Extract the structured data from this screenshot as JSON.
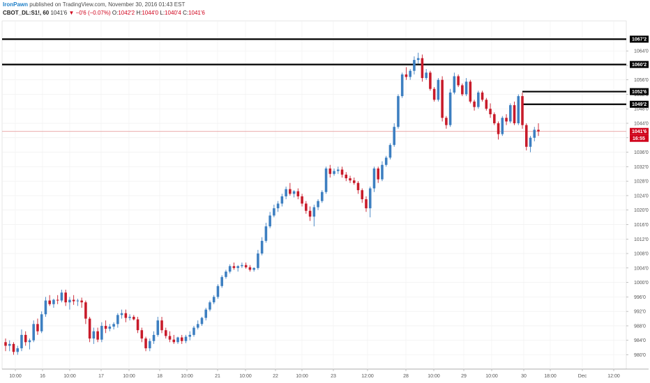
{
  "header": {
    "author": "IronPawn",
    "published_text": "published on TradingView.com, November 30, 2016 01:43 EST",
    "symbol": "CBOT_DL:S1!, 60",
    "last": "1041'6",
    "arrow": "▼",
    "change": "−0'6 (−0.07%)",
    "open_label": "O:",
    "open": "1042'2",
    "high_label": "H:",
    "high": "1044'0",
    "low_label": "L:",
    "low": "1040'4",
    "close_label": "C:",
    "close": "1041'6"
  },
  "colors": {
    "up": "#3d7fc1",
    "down": "#c81b2a",
    "level_line": "#000000",
    "price_line": "#e8a0a0",
    "label_bg": "#000000",
    "price_label_bg": "#d0021b"
  },
  "chart_data": {
    "type": "candlestick",
    "ylim": [
      978,
      1068
    ],
    "y_ticks": [
      {
        "value": 980,
        "label": "980'0"
      },
      {
        "value": 984,
        "label": "984'0"
      },
      {
        "value": 988,
        "label": "988'0"
      },
      {
        "value": 992,
        "label": "992'0"
      },
      {
        "value": 996,
        "label": "996'0"
      },
      {
        "value": 1000,
        "label": "1000'0"
      },
      {
        "value": 1004,
        "label": "1004'0"
      },
      {
        "value": 1008,
        "label": "1008'0"
      },
      {
        "value": 1012,
        "label": "1012'0"
      },
      {
        "value": 1016,
        "label": "1016'0"
      },
      {
        "value": 1020,
        "label": "1020'0"
      },
      {
        "value": 1024,
        "label": "1024'0"
      },
      {
        "value": 1028,
        "label": "1028'0"
      },
      {
        "value": 1032,
        "label": "1032'0"
      },
      {
        "value": 1036,
        "label": "1036'0"
      },
      {
        "value": 1040,
        "label": "1040'0"
      },
      {
        "value": 1044,
        "label": "1044'0"
      },
      {
        "value": 1048,
        "label": "1048'0"
      },
      {
        "value": 1052,
        "label": "1052'0"
      },
      {
        "value": 1056,
        "label": "1056'0"
      },
      {
        "value": 1060,
        "label": "1060'0"
      },
      {
        "value": 1064,
        "label": "1064'0"
      }
    ],
    "x_ticks": [
      "10:00",
      "16",
      "10:00",
      "17",
      "10:00",
      "18",
      "10:00",
      "21",
      "10:00",
      "22",
      "10:00",
      "23",
      "12:00",
      "28",
      "10:00",
      "29",
      "10:00",
      "30",
      "18:00",
      "Dec",
      "12:00"
    ],
    "levels": [
      {
        "value": 1067.25,
        "label": "1067'2"
      },
      {
        "value": 1060.25,
        "label": "1060'2"
      },
      {
        "value": 1052.75,
        "label": "1052'6"
      },
      {
        "value": 1049.25,
        "label": "1049'2"
      }
    ],
    "current_price": {
      "value": 1041.75,
      "label": "1041'6",
      "countdown": "16:55"
    },
    "candles": [
      [
        983.5,
        984.5,
        981,
        982.5
      ],
      [
        982.5,
        984,
        981,
        983
      ],
      [
        983,
        983.5,
        980,
        980.8
      ],
      [
        980.8,
        982.5,
        980,
        981.8
      ],
      [
        981.8,
        987,
        981,
        985.5
      ],
      [
        985.5,
        986.5,
        982.5,
        983.5
      ],
      [
        983.5,
        984.5,
        981.5,
        984
      ],
      [
        984,
        989.5,
        983.5,
        988.5
      ],
      [
        988.5,
        990,
        985.5,
        986.5
      ],
      [
        986.5,
        992,
        986,
        991.2
      ],
      [
        991.2,
        996,
        990.5,
        995
      ],
      [
        995,
        996.5,
        993.5,
        994
      ],
      [
        994,
        995.5,
        993,
        995.2
      ],
      [
        995.2,
        996.5,
        994,
        995
      ],
      [
        995,
        998,
        994.5,
        997.2
      ],
      [
        997.2,
        998,
        993.5,
        994.5
      ],
      [
        994.5,
        996,
        992.5,
        995.2
      ],
      [
        995.2,
        996.5,
        993.8,
        994.8
      ],
      [
        994.8,
        995.5,
        993.5,
        995
      ],
      [
        995,
        995.8,
        993,
        994.5
      ],
      [
        994.5,
        995,
        988.5,
        990
      ],
      [
        990,
        990.5,
        983.5,
        984.5
      ],
      [
        984.5,
        987.5,
        983,
        986.5
      ],
      [
        986.5,
        987.5,
        983.5,
        984.2
      ],
      [
        984.2,
        989,
        983.5,
        988
      ],
      [
        988,
        989.5,
        986,
        987.2
      ],
      [
        987.2,
        988.5,
        986.5,
        987.8
      ],
      [
        987.8,
        989,
        987,
        988.5
      ],
      [
        988.5,
        991.5,
        987.5,
        991
      ],
      [
        991,
        992.5,
        990,
        991.5
      ],
      [
        991.5,
        992.5,
        989,
        990.2
      ],
      [
        990.2,
        991.2,
        989.5,
        990.5
      ],
      [
        990.5,
        991,
        989.5,
        989.8
      ],
      [
        989.8,
        990.5,
        986,
        986.8
      ],
      [
        986.8,
        987.5,
        983.5,
        984.5
      ],
      [
        984.5,
        985,
        981,
        981.8
      ],
      [
        981.8,
        984.5,
        981,
        983.8
      ],
      [
        983.8,
        986.5,
        983,
        985.5
      ],
      [
        985.5,
        990.5,
        985,
        989.5
      ],
      [
        989.5,
        990.5,
        986,
        986.8
      ],
      [
        986.8,
        987.5,
        984.5,
        985.2
      ],
      [
        985.2,
        986.5,
        983.5,
        984.2
      ],
      [
        984.2,
        985.5,
        983,
        983.5
      ],
      [
        983.5,
        985,
        983,
        984.8
      ],
      [
        984.8,
        985.5,
        983,
        983.8
      ],
      [
        983.8,
        985.5,
        983.2,
        985
      ],
      [
        985,
        986.5,
        984,
        985.5
      ],
      [
        985.5,
        988,
        985,
        987.5
      ],
      [
        987.5,
        989.5,
        987,
        988.5
      ],
      [
        988.5,
        990.5,
        988,
        990.2
      ],
      [
        990.2,
        993,
        989.5,
        992.5
      ],
      [
        992.5,
        995,
        992,
        994.5
      ],
      [
        994.5,
        996.5,
        994,
        996
      ],
      [
        996,
        999.5,
        995.5,
        999
      ],
      [
        999,
        1002,
        998.5,
        1001.5
      ],
      [
        1001.5,
        1003.5,
        1001,
        1003
      ],
      [
        1003,
        1005,
        1002.5,
        1004.5
      ],
      [
        1004.5,
        1005.5,
        1003.5,
        1004
      ],
      [
        1004,
        1004.8,
        1003,
        1004.5
      ],
      [
        1004.5,
        1005.5,
        1004,
        1004.8
      ],
      [
        1004.8,
        1005.5,
        1003.8,
        1004.2
      ],
      [
        1004.2,
        1004.8,
        1003,
        1003.5
      ],
      [
        1003.5,
        1004.2,
        1003,
        1004
      ],
      [
        1004,
        1009,
        1003.5,
        1008
      ],
      [
        1008,
        1012.5,
        1007.5,
        1011.5
      ],
      [
        1011.5,
        1016.5,
        1011,
        1015.5
      ],
      [
        1015.5,
        1019.5,
        1015,
        1018.5
      ],
      [
        1018.5,
        1021.5,
        1018,
        1020.5
      ],
      [
        1020.5,
        1022.5,
        1019.5,
        1021.8
      ],
      [
        1021.8,
        1024.5,
        1021,
        1023.8
      ],
      [
        1023.8,
        1026.5,
        1023,
        1025.8
      ],
      [
        1025.8,
        1027.5,
        1024,
        1024.5
      ],
      [
        1024.5,
        1025.5,
        1023.5,
        1025.2
      ],
      [
        1025.2,
        1026,
        1023,
        1023.8
      ],
      [
        1023.8,
        1024.5,
        1021,
        1021.8
      ],
      [
        1021.8,
        1022.5,
        1019,
        1019.8
      ],
      [
        1019.8,
        1021,
        1017,
        1018.2
      ],
      [
        1018.2,
        1021.5,
        1015.5,
        1020.8
      ],
      [
        1020.8,
        1023,
        1020,
        1022.5
      ],
      [
        1022.5,
        1025.5,
        1022,
        1025
      ],
      [
        1025,
        1032,
        1024.5,
        1031.5
      ],
      [
        1031.5,
        1032.5,
        1029,
        1030
      ],
      [
        1030,
        1031.5,
        1029.5,
        1030.8
      ],
      [
        1030.8,
        1032,
        1030,
        1031.2
      ],
      [
        1031.2,
        1032,
        1029,
        1029.8
      ],
      [
        1029.8,
        1030.5,
        1028,
        1028.8
      ],
      [
        1028.8,
        1029.5,
        1027.5,
        1028.2
      ],
      [
        1028.2,
        1029,
        1027,
        1027.5
      ],
      [
        1027.5,
        1028,
        1024.5,
        1025.5
      ],
      [
        1025.5,
        1026,
        1022,
        1023
      ],
      [
        1023,
        1023.8,
        1019.5,
        1020.5
      ],
      [
        1020.5,
        1026.5,
        1018,
        1026
      ],
      [
        1026,
        1032,
        1025,
        1031.5
      ],
      [
        1031.5,
        1032,
        1027.5,
        1028.5
      ],
      [
        1028.5,
        1033.5,
        1028,
        1032.5
      ],
      [
        1032.5,
        1035,
        1032,
        1034.5
      ],
      [
        1034.5,
        1038.5,
        1034,
        1038
      ],
      [
        1038,
        1044,
        1037.5,
        1043
      ],
      [
        1043,
        1052,
        1042.5,
        1051.5
      ],
      [
        1051.5,
        1058,
        1051,
        1057.5
      ],
      [
        1057.5,
        1059.5,
        1056,
        1056.8
      ],
      [
        1056.8,
        1059,
        1056,
        1058.5
      ],
      [
        1058.5,
        1062.5,
        1057.5,
        1061.5
      ],
      [
        1061.5,
        1063.5,
        1060.5,
        1062
      ],
      [
        1062,
        1063,
        1055.5,
        1056.5
      ],
      [
        1056.5,
        1059,
        1056,
        1058
      ],
      [
        1058,
        1058.5,
        1053,
        1053.5
      ],
      [
        1053.5,
        1054,
        1050,
        1050.5
      ],
      [
        1050.5,
        1056.5,
        1050,
        1056
      ],
      [
        1056,
        1057,
        1044.5,
        1045.5
      ],
      [
        1045.5,
        1046,
        1042.5,
        1043.5
      ],
      [
        1043.5,
        1053.5,
        1043,
        1052.5
      ],
      [
        1052.5,
        1058,
        1052,
        1057
      ],
      [
        1057,
        1057.5,
        1054,
        1054.5
      ],
      [
        1054.5,
        1055,
        1051.5,
        1052
      ],
      [
        1052,
        1056.5,
        1051.5,
        1055.5
      ],
      [
        1055.5,
        1056,
        1049.5,
        1050
      ],
      [
        1050,
        1050.5,
        1047.5,
        1048.5
      ],
      [
        1048.5,
        1053,
        1048,
        1052.5
      ],
      [
        1052.5,
        1053,
        1050,
        1050.5
      ],
      [
        1050.5,
        1051,
        1047.5,
        1048
      ],
      [
        1048,
        1049.5,
        1045.5,
        1046.5
      ],
      [
        1046.5,
        1047,
        1043.5,
        1044
      ],
      [
        1044,
        1044.5,
        1039.5,
        1041
      ],
      [
        1041,
        1046,
        1040.5,
        1045.5
      ],
      [
        1045.5,
        1046.5,
        1043.5,
        1044.5
      ],
      [
        1044.5,
        1049.5,
        1044,
        1049
      ],
      [
        1049,
        1050,
        1043.5,
        1044
      ],
      [
        1044,
        1052,
        1043.5,
        1051.5
      ],
      [
        1051.5,
        1052.5,
        1042.5,
        1043.5
      ],
      [
        1043.5,
        1044,
        1036.5,
        1037.5
      ],
      [
        1037.5,
        1040.5,
        1036,
        1040
      ],
      [
        1040,
        1043,
        1039,
        1042.2
      ],
      [
        1042.2,
        1044,
        1040.5,
        1041.75
      ]
    ]
  }
}
